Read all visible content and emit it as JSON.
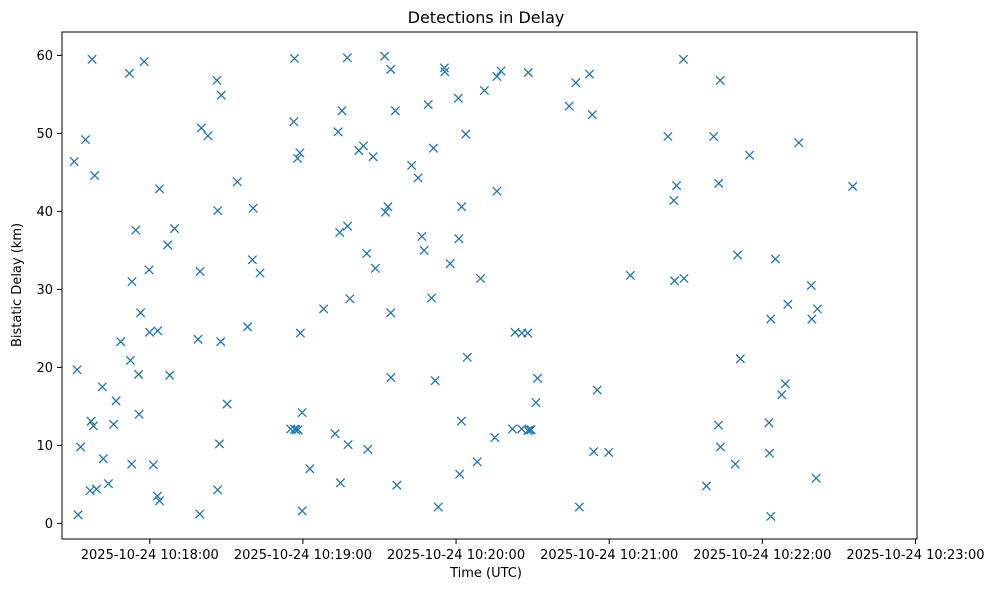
{
  "chart_data": {
    "type": "scatter",
    "title": "Detections in Delay",
    "xlabel": "Time (UTC)",
    "ylabel": "Bistatic Delay (km)",
    "marker": "x",
    "color": "#1f77b4",
    "x_unit": "seconds since 2025-10-24 10:17:30 UTC",
    "xlim": [
      -4.4,
      330.6
    ],
    "ylim": [
      -2.0,
      63.0
    ],
    "x_ticks": [
      {
        "value": 30,
        "label": "2025-10-24 10:18:00"
      },
      {
        "value": 90,
        "label": "2025-10-24 10:19:00"
      },
      {
        "value": 150,
        "label": "2025-10-24 10:20:00"
      },
      {
        "value": 210,
        "label": "2025-10-24 10:21:00"
      },
      {
        "value": 270,
        "label": "2025-10-24 10:22:00"
      },
      {
        "value": 330,
        "label": "2025-10-24 10:23:00"
      }
    ],
    "y_ticks": [
      {
        "value": 0,
        "label": "0"
      },
      {
        "value": 10,
        "label": "10"
      },
      {
        "value": 20,
        "label": "20"
      },
      {
        "value": 30,
        "label": "30"
      },
      {
        "value": 40,
        "label": "40"
      },
      {
        "value": 50,
        "label": "50"
      },
      {
        "value": 60,
        "label": "60"
      }
    ],
    "points": [
      [
        0.4,
        46.4
      ],
      [
        1.5,
        19.7
      ],
      [
        1.9,
        1.1
      ],
      [
        2.9,
        9.8
      ],
      [
        4.8,
        49.2
      ],
      [
        6.6,
        4.2
      ],
      [
        7.0,
        13.1
      ],
      [
        7.4,
        59.5
      ],
      [
        7.9,
        12.5
      ],
      [
        8.4,
        44.6
      ],
      [
        9.1,
        4.4
      ],
      [
        11.4,
        17.5
      ],
      [
        11.8,
        8.3
      ],
      [
        13.8,
        5.1
      ],
      [
        15.8,
        12.7
      ],
      [
        16.8,
        15.7
      ],
      [
        18.6,
        23.3
      ],
      [
        22.0,
        57.7
      ],
      [
        22.4,
        20.9
      ],
      [
        22.9,
        7.6
      ],
      [
        23.0,
        31.0
      ],
      [
        24.5,
        37.6
      ],
      [
        25.6,
        19.1
      ],
      [
        25.8,
        14.0
      ],
      [
        26.4,
        27.0
      ],
      [
        27.8,
        59.2
      ],
      [
        29.7,
        32.5
      ],
      [
        29.9,
        24.5
      ],
      [
        31.4,
        7.5
      ],
      [
        33.0,
        3.5
      ],
      [
        33.1,
        24.7
      ],
      [
        33.8,
        42.9
      ],
      [
        33.8,
        2.9
      ],
      [
        37.0,
        35.7
      ],
      [
        37.8,
        19.0
      ],
      [
        39.7,
        37.8
      ],
      [
        48.9,
        23.6
      ],
      [
        49.6,
        1.2
      ],
      [
        49.7,
        32.3
      ],
      [
        50.2,
        50.7
      ],
      [
        52.8,
        49.7
      ],
      [
        56.3,
        56.8
      ],
      [
        56.6,
        40.1
      ],
      [
        56.6,
        4.3
      ],
      [
        57.3,
        10.2
      ],
      [
        57.8,
        23.3
      ],
      [
        58.0,
        54.9
      ],
      [
        60.3,
        15.3
      ],
      [
        64.3,
        43.8
      ],
      [
        68.3,
        25.2
      ],
      [
        70.2,
        33.8
      ],
      [
        70.5,
        40.4
      ],
      [
        73.2,
        32.1
      ],
      [
        85.2,
        12.1
      ],
      [
        86.4,
        51.5
      ],
      [
        86.7,
        12.1
      ],
      [
        86.7,
        59.6
      ],
      [
        87.2,
        12.0
      ],
      [
        87.9,
        46.8
      ],
      [
        88.1,
        12.0
      ],
      [
        88.8,
        47.5
      ],
      [
        89.0,
        24.4
      ],
      [
        89.7,
        14.2
      ],
      [
        89.7,
        1.6
      ],
      [
        92.7,
        7.0
      ],
      [
        98.1,
        27.5
      ],
      [
        102.6,
        11.5
      ],
      [
        103.8,
        50.2
      ],
      [
        104.4,
        37.3
      ],
      [
        104.7,
        5.2
      ],
      [
        105.3,
        52.9
      ],
      [
        107.4,
        59.7
      ],
      [
        107.5,
        38.1
      ],
      [
        107.7,
        10.1
      ],
      [
        108.4,
        28.8
      ],
      [
        111.9,
        47.8
      ],
      [
        113.7,
        48.4
      ],
      [
        115.0,
        34.6
      ],
      [
        115.4,
        9.5
      ],
      [
        117.5,
        47.0
      ],
      [
        118.4,
        32.7
      ],
      [
        122.0,
        59.9
      ],
      [
        122.3,
        39.9
      ],
      [
        123.3,
        40.6
      ],
      [
        124.4,
        27.0
      ],
      [
        124.4,
        58.2
      ],
      [
        124.5,
        18.7
      ],
      [
        126.2,
        52.9
      ],
      [
        126.8,
        4.9
      ],
      [
        132.6,
        45.9
      ],
      [
        135.1,
        44.3
      ],
      [
        136.6,
        36.8
      ],
      [
        137.5,
        35.0
      ],
      [
        139.1,
        53.7
      ],
      [
        140.4,
        28.9
      ],
      [
        141.1,
        48.1
      ],
      [
        141.8,
        18.3
      ],
      [
        143.0,
        2.1
      ],
      [
        145.4,
        58.4
      ],
      [
        145.6,
        57.9
      ],
      [
        147.7,
        33.3
      ],
      [
        150.9,
        54.5
      ],
      [
        151.1,
        36.5
      ],
      [
        151.4,
        6.3
      ],
      [
        152.1,
        13.1
      ],
      [
        152.2,
        40.6
      ],
      [
        153.8,
        49.9
      ],
      [
        154.4,
        21.3
      ],
      [
        158.3,
        7.9
      ],
      [
        159.6,
        31.4
      ],
      [
        161.1,
        55.5
      ],
      [
        165.2,
        11.0
      ],
      [
        166.0,
        42.6
      ],
      [
        166.0,
        57.3
      ],
      [
        167.6,
        58.0
      ],
      [
        172.1,
        12.1
      ],
      [
        173.1,
        24.5
      ],
      [
        175.7,
        12.1
      ],
      [
        175.8,
        24.4
      ],
      [
        178.1,
        24.4
      ],
      [
        178.2,
        11.9
      ],
      [
        178.3,
        57.8
      ],
      [
        178.8,
        12.0
      ],
      [
        179.4,
        12.0
      ],
      [
        181.3,
        15.5
      ],
      [
        181.9,
        18.6
      ],
      [
        194.3,
        53.5
      ],
      [
        196.9,
        56.5
      ],
      [
        198.3,
        2.1
      ],
      [
        202.3,
        57.6
      ],
      [
        203.4,
        52.4
      ],
      [
        203.9,
        9.2
      ],
      [
        205.3,
        17.1
      ],
      [
        209.8,
        9.1
      ],
      [
        218.3,
        31.8
      ],
      [
        233.0,
        49.6
      ],
      [
        235.3,
        41.4
      ],
      [
        235.6,
        31.1
      ],
      [
        236.4,
        43.3
      ],
      [
        239.1,
        59.5
      ],
      [
        239.3,
        31.4
      ],
      [
        248.1,
        4.8
      ],
      [
        250.9,
        49.6
      ],
      [
        252.8,
        12.6
      ],
      [
        252.9,
        43.6
      ],
      [
        253.5,
        56.8
      ],
      [
        253.6,
        9.8
      ],
      [
        259.4,
        7.6
      ],
      [
        260.3,
        34.4
      ],
      [
        261.4,
        21.1
      ],
      [
        265.0,
        47.2
      ],
      [
        272.6,
        12.9
      ],
      [
        272.8,
        9.0
      ],
      [
        273.3,
        0.9
      ],
      [
        273.3,
        26.2
      ],
      [
        275.1,
        33.9
      ],
      [
        277.6,
        16.5
      ],
      [
        279.0,
        17.9
      ],
      [
        280.0,
        28.1
      ],
      [
        284.3,
        48.8
      ],
      [
        289.2,
        30.5
      ],
      [
        289.4,
        26.2
      ],
      [
        291.1,
        5.8
      ],
      [
        291.6,
        27.5
      ],
      [
        305.4,
        43.2
      ]
    ]
  }
}
